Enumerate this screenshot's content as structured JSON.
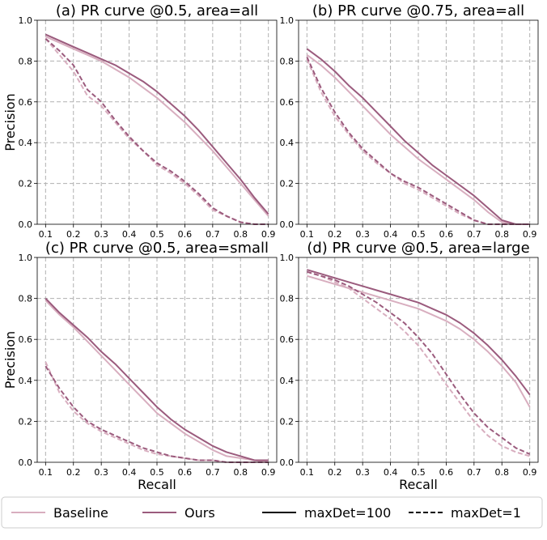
{
  "colors": {
    "baseline": "#d8aebf",
    "ours": "#9b5b7d",
    "black": "#000000"
  },
  "legend": {
    "items": [
      {
        "label": "Baseline",
        "color": "#d8aebf",
        "dash": "solid"
      },
      {
        "label": "Ours",
        "color": "#9b5b7d",
        "dash": "solid"
      },
      {
        "label": "maxDet=100",
        "color": "#000000",
        "dash": "solid"
      },
      {
        "label": "maxDet=1",
        "color": "#000000",
        "dash": "dashed"
      }
    ]
  },
  "chart_data": [
    {
      "type": "line",
      "title": "(a) PR curve @0.5, area=all",
      "xlabel": "",
      "ylabel": "Precision",
      "xlim": [
        0.07,
        0.93
      ],
      "ylim": [
        0,
        1
      ],
      "xticks": [
        "0.1",
        "0.2",
        "0.3",
        "0.4",
        "0.5",
        "0.6",
        "0.7",
        "0.8",
        "0.9"
      ],
      "yticks": [
        "0.0",
        "0.2",
        "0.4",
        "0.6",
        "0.8",
        "1.0"
      ],
      "grid": true,
      "x": [
        0.1,
        0.15,
        0.2,
        0.25,
        0.3,
        0.35,
        0.4,
        0.45,
        0.5,
        0.55,
        0.6,
        0.65,
        0.7,
        0.75,
        0.8,
        0.85,
        0.9
      ],
      "series": [
        {
          "name": "Baseline",
          "maxDet": "100",
          "values": [
            0.92,
            0.89,
            0.86,
            0.83,
            0.8,
            0.76,
            0.72,
            0.67,
            0.62,
            0.56,
            0.5,
            0.43,
            0.36,
            0.28,
            0.2,
            0.12,
            0.04
          ]
        },
        {
          "name": "Ours",
          "maxDet": "100",
          "values": [
            0.93,
            0.9,
            0.87,
            0.84,
            0.81,
            0.78,
            0.74,
            0.7,
            0.65,
            0.59,
            0.53,
            0.46,
            0.38,
            0.3,
            0.22,
            0.13,
            0.05
          ]
        },
        {
          "name": "Baseline",
          "maxDet": "1",
          "values": [
            0.91,
            0.83,
            0.75,
            0.63,
            0.58,
            0.5,
            0.42,
            0.36,
            0.29,
            0.25,
            0.2,
            0.14,
            0.07,
            0.04,
            0.01,
            0.0,
            0.0
          ]
        },
        {
          "name": "Ours",
          "maxDet": "1",
          "values": [
            0.91,
            0.85,
            0.78,
            0.66,
            0.6,
            0.51,
            0.43,
            0.36,
            0.3,
            0.26,
            0.21,
            0.15,
            0.08,
            0.04,
            0.01,
            0.0,
            0.0
          ]
        }
      ]
    },
    {
      "type": "line",
      "title": "(b) PR curve @0.75, area=all",
      "xlabel": "",
      "ylabel": "",
      "xlim": [
        0.07,
        0.93
      ],
      "ylim": [
        0,
        1
      ],
      "xticks": [
        "0.1",
        "0.2",
        "0.3",
        "0.4",
        "0.5",
        "0.6",
        "0.7",
        "0.8",
        "0.9"
      ],
      "yticks": [
        "0.0",
        "0.2",
        "0.4",
        "0.6",
        "0.8",
        "1.0"
      ],
      "grid": true,
      "x": [
        0.1,
        0.15,
        0.2,
        0.25,
        0.3,
        0.35,
        0.4,
        0.45,
        0.5,
        0.55,
        0.6,
        0.65,
        0.7,
        0.75,
        0.8,
        0.85,
        0.9
      ],
      "series": [
        {
          "name": "Baseline",
          "maxDet": "100",
          "values": [
            0.83,
            0.78,
            0.72,
            0.65,
            0.58,
            0.51,
            0.44,
            0.38,
            0.32,
            0.27,
            0.22,
            0.17,
            0.12,
            0.06,
            0.01,
            0.0,
            0.0
          ]
        },
        {
          "name": "Ours",
          "maxDet": "100",
          "values": [
            0.86,
            0.81,
            0.75,
            0.68,
            0.62,
            0.55,
            0.48,
            0.41,
            0.35,
            0.29,
            0.24,
            0.19,
            0.14,
            0.08,
            0.02,
            0.0,
            0.0
          ]
        },
        {
          "name": "Baseline",
          "maxDet": "1",
          "values": [
            0.81,
            0.65,
            0.53,
            0.44,
            0.36,
            0.3,
            0.25,
            0.2,
            0.17,
            0.13,
            0.09,
            0.05,
            0.02,
            0.0,
            0.0,
            0.0,
            0.0
          ]
        },
        {
          "name": "Ours",
          "maxDet": "1",
          "values": [
            0.82,
            0.67,
            0.55,
            0.45,
            0.37,
            0.31,
            0.25,
            0.21,
            0.18,
            0.14,
            0.1,
            0.06,
            0.02,
            0.0,
            0.0,
            0.0,
            0.0
          ]
        }
      ]
    },
    {
      "type": "line",
      "title": "(c) PR curve @0.5, area=small",
      "xlabel": "Recall",
      "ylabel": "Precision",
      "xlim": [
        0.07,
        0.93
      ],
      "ylim": [
        0,
        1
      ],
      "xticks": [
        "0.1",
        "0.2",
        "0.3",
        "0.4",
        "0.5",
        "0.6",
        "0.7",
        "0.8",
        "0.9"
      ],
      "yticks": [
        "0.0",
        "0.2",
        "0.4",
        "0.6",
        "0.8",
        "1.0"
      ],
      "grid": true,
      "x": [
        0.1,
        0.15,
        0.2,
        0.25,
        0.3,
        0.35,
        0.4,
        0.45,
        0.5,
        0.55,
        0.6,
        0.65,
        0.7,
        0.75,
        0.8,
        0.85,
        0.9
      ],
      "series": [
        {
          "name": "Baseline",
          "maxDet": "100",
          "values": [
            0.79,
            0.72,
            0.66,
            0.59,
            0.52,
            0.45,
            0.38,
            0.31,
            0.24,
            0.19,
            0.14,
            0.1,
            0.06,
            0.03,
            0.02,
            0.01,
            0.0
          ]
        },
        {
          "name": "Ours",
          "maxDet": "100",
          "values": [
            0.8,
            0.73,
            0.67,
            0.61,
            0.54,
            0.48,
            0.41,
            0.34,
            0.27,
            0.21,
            0.16,
            0.12,
            0.08,
            0.05,
            0.03,
            0.01,
            0.01
          ]
        },
        {
          "name": "Baseline",
          "maxDet": "1",
          "values": [
            0.49,
            0.34,
            0.25,
            0.19,
            0.15,
            0.12,
            0.09,
            0.06,
            0.04,
            0.03,
            0.02,
            0.01,
            0.01,
            0.0,
            0.0,
            0.0,
            0.0
          ]
        },
        {
          "name": "Ours",
          "maxDet": "1",
          "values": [
            0.47,
            0.36,
            0.27,
            0.2,
            0.16,
            0.13,
            0.1,
            0.07,
            0.05,
            0.03,
            0.02,
            0.01,
            0.01,
            0.0,
            0.0,
            0.0,
            0.0
          ]
        }
      ]
    },
    {
      "type": "line",
      "title": "(d) PR curve @0.5, area=large",
      "xlabel": "Recall",
      "ylabel": "",
      "xlim": [
        0.07,
        0.93
      ],
      "ylim": [
        0,
        1
      ],
      "xticks": [
        "0.1",
        "0.2",
        "0.3",
        "0.4",
        "0.5",
        "0.6",
        "0.7",
        "0.8",
        "0.9"
      ],
      "yticks": [
        "0.0",
        "0.2",
        "0.4",
        "0.6",
        "0.8",
        "1.0"
      ],
      "grid": true,
      "x": [
        0.1,
        0.15,
        0.2,
        0.25,
        0.3,
        0.35,
        0.4,
        0.45,
        0.5,
        0.55,
        0.6,
        0.65,
        0.7,
        0.75,
        0.8,
        0.85,
        0.9
      ],
      "series": [
        {
          "name": "Baseline",
          "maxDet": "100",
          "values": [
            0.91,
            0.89,
            0.87,
            0.85,
            0.83,
            0.81,
            0.79,
            0.77,
            0.75,
            0.72,
            0.69,
            0.65,
            0.6,
            0.54,
            0.47,
            0.39,
            0.27
          ]
        },
        {
          "name": "Ours",
          "maxDet": "100",
          "values": [
            0.94,
            0.92,
            0.9,
            0.88,
            0.86,
            0.84,
            0.82,
            0.8,
            0.78,
            0.75,
            0.72,
            0.68,
            0.63,
            0.57,
            0.5,
            0.42,
            0.33
          ]
        },
        {
          "name": "Baseline",
          "maxDet": "1",
          "values": [
            0.93,
            0.91,
            0.88,
            0.85,
            0.8,
            0.75,
            0.7,
            0.64,
            0.57,
            0.48,
            0.38,
            0.29,
            0.2,
            0.13,
            0.08,
            0.05,
            0.03
          ]
        },
        {
          "name": "Ours",
          "maxDet": "1",
          "values": [
            0.93,
            0.91,
            0.89,
            0.86,
            0.82,
            0.78,
            0.73,
            0.68,
            0.61,
            0.53,
            0.43,
            0.33,
            0.24,
            0.17,
            0.12,
            0.07,
            0.04
          ]
        }
      ]
    }
  ]
}
